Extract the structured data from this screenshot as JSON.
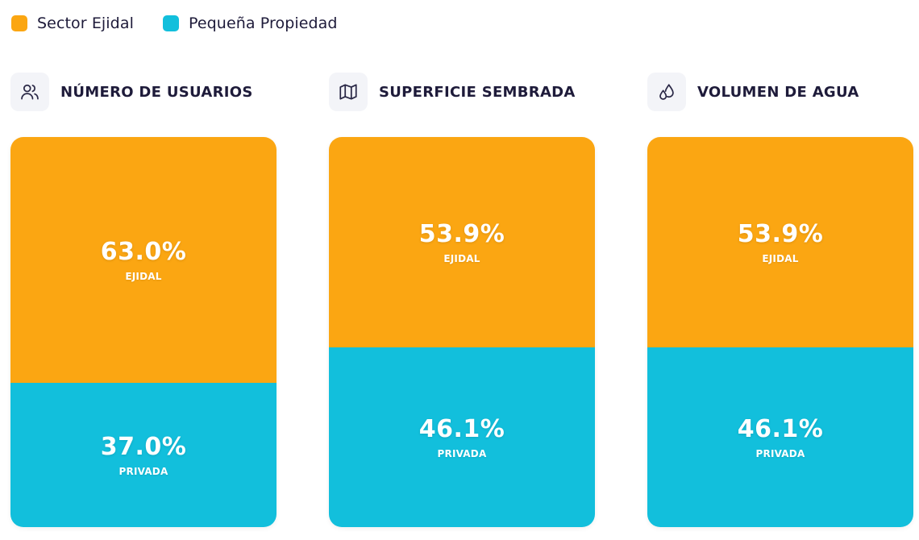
{
  "colors": {
    "ejidal": "#fba612",
    "privada": "#12bfdc",
    "icon_stroke": "#2a2846"
  },
  "legend": {
    "items": [
      {
        "label": "Sector Ejidal",
        "series": "ejidal"
      },
      {
        "label": "Pequeña Propiedad",
        "series": "privada"
      }
    ]
  },
  "chart_data": [
    {
      "type": "bar",
      "title": "NÚMERO DE USUARIOS",
      "icon": "users-icon",
      "stacked": true,
      "series": [
        {
          "name": "Sector Ejidal",
          "short": "EJIDAL",
          "value": 63.0,
          "display": "63.0%"
        },
        {
          "name": "Pequeña Propiedad",
          "short": "PRIVADA",
          "value": 37.0,
          "display": "37.0%"
        }
      ]
    },
    {
      "type": "bar",
      "title": "SUPERFICIE SEMBRADA",
      "icon": "map-icon",
      "stacked": true,
      "series": [
        {
          "name": "Sector Ejidal",
          "short": "EJIDAL",
          "value": 53.9,
          "display": "53.9%"
        },
        {
          "name": "Pequeña Propiedad",
          "short": "PRIVADA",
          "value": 46.1,
          "display": "46.1%"
        }
      ]
    },
    {
      "type": "bar",
      "title": "VOLUMEN DE AGUA",
      "icon": "water-drops-icon",
      "stacked": true,
      "series": [
        {
          "name": "Sector Ejidal",
          "short": "EJIDAL",
          "value": 53.9,
          "display": "53.9%"
        },
        {
          "name": "Pequeña Propiedad",
          "short": "PRIVADA",
          "value": 46.1,
          "display": "46.1%"
        }
      ]
    }
  ]
}
